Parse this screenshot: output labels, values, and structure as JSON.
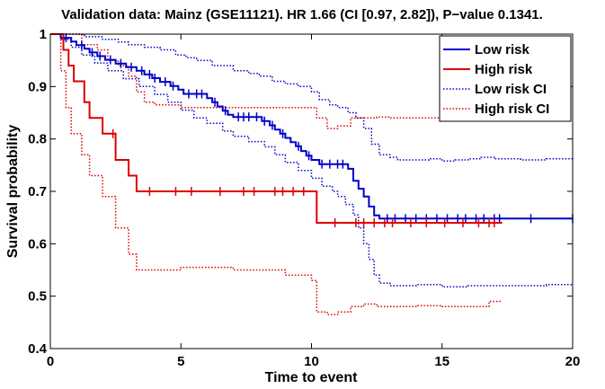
{
  "chart_data": {
    "type": "line",
    "title": "Validation data: Mainz (GSE11121). HR 1.66 (CI [0.97, 2.82]), P−value 0.1341.",
    "xlabel": "Time to event",
    "ylabel": "Survival probability",
    "xlim": [
      0,
      20
    ],
    "ylim": [
      0.4,
      1
    ],
    "xticks": [
      "0",
      "5",
      "10",
      "15",
      "20"
    ],
    "yticks": [
      "0.4",
      "0.5",
      "0.6",
      "0.7",
      "0.8",
      "0.9",
      "1"
    ],
    "grid": false,
    "legend_position": "top-right",
    "colors": {
      "blue": "#0000cc",
      "red": "#dd0000"
    },
    "series": [
      {
        "name": "Low risk",
        "style": "solid",
        "color": "#0000cc",
        "steps": [
          [
            0,
            1
          ],
          [
            0.4,
            1
          ],
          [
            0.4,
            0.993
          ],
          [
            0.8,
            0.993
          ],
          [
            0.8,
            0.986
          ],
          [
            1.0,
            0.986
          ],
          [
            1.0,
            0.979
          ],
          [
            1.3,
            0.979
          ],
          [
            1.3,
            0.972
          ],
          [
            1.5,
            0.972
          ],
          [
            1.5,
            0.965
          ],
          [
            1.8,
            0.965
          ],
          [
            1.8,
            0.958
          ],
          [
            2.1,
            0.958
          ],
          [
            2.1,
            0.951
          ],
          [
            2.5,
            0.951
          ],
          [
            2.5,
            0.944
          ],
          [
            2.9,
            0.944
          ],
          [
            2.9,
            0.937
          ],
          [
            3.3,
            0.937
          ],
          [
            3.3,
            0.93
          ],
          [
            3.6,
            0.93
          ],
          [
            3.6,
            0.923
          ],
          [
            3.9,
            0.923
          ],
          [
            3.9,
            0.916
          ],
          [
            4.2,
            0.916
          ],
          [
            4.2,
            0.909
          ],
          [
            4.6,
            0.909
          ],
          [
            4.6,
            0.901
          ],
          [
            4.9,
            0.901
          ],
          [
            4.9,
            0.894
          ],
          [
            5.1,
            0.894
          ],
          [
            5.1,
            0.886
          ],
          [
            6.0,
            0.886
          ],
          [
            6.0,
            0.878
          ],
          [
            6.2,
            0.878
          ],
          [
            6.2,
            0.87
          ],
          [
            6.4,
            0.87
          ],
          [
            6.4,
            0.862
          ],
          [
            6.6,
            0.862
          ],
          [
            6.6,
            0.854
          ],
          [
            6.8,
            0.854
          ],
          [
            6.8,
            0.846
          ],
          [
            7.0,
            0.846
          ],
          [
            7.0,
            0.842
          ],
          [
            8.1,
            0.842
          ],
          [
            8.1,
            0.834
          ],
          [
            8.4,
            0.834
          ],
          [
            8.4,
            0.826
          ],
          [
            8.6,
            0.826
          ],
          [
            8.6,
            0.818
          ],
          [
            8.8,
            0.818
          ],
          [
            8.8,
            0.81
          ],
          [
            9.0,
            0.81
          ],
          [
            9.0,
            0.802
          ],
          [
            9.2,
            0.802
          ],
          [
            9.2,
            0.794
          ],
          [
            9.4,
            0.794
          ],
          [
            9.4,
            0.786
          ],
          [
            9.6,
            0.786
          ],
          [
            9.6,
            0.777
          ],
          [
            9.8,
            0.777
          ],
          [
            9.8,
            0.768
          ],
          [
            10.0,
            0.768
          ],
          [
            10.0,
            0.76
          ],
          [
            10.3,
            0.76
          ],
          [
            10.3,
            0.752
          ],
          [
            11.4,
            0.752
          ],
          [
            11.4,
            0.743
          ],
          [
            11.6,
            0.743
          ],
          [
            11.6,
            0.72
          ],
          [
            11.8,
            0.72
          ],
          [
            11.8,
            0.705
          ],
          [
            12.0,
            0.705
          ],
          [
            12.0,
            0.69
          ],
          [
            12.2,
            0.69
          ],
          [
            12.2,
            0.671
          ],
          [
            12.4,
            0.671
          ],
          [
            12.4,
            0.654
          ],
          [
            12.6,
            0.654
          ],
          [
            12.6,
            0.648
          ],
          [
            20,
            0.648
          ]
        ],
        "censor_x": [
          0.6,
          1.2,
          1.6,
          1.9,
          2.3,
          2.7,
          3.1,
          3.5,
          3.8,
          4.0,
          4.4,
          4.7,
          5.3,
          5.6,
          5.8,
          6.3,
          6.7,
          7.2,
          7.4,
          7.6,
          7.9,
          8.2,
          8.5,
          8.9,
          9.5,
          9.9,
          10.4,
          10.7,
          11.0,
          11.2,
          12.9,
          13.2,
          13.6,
          14.0,
          14.4,
          14.8,
          15.2,
          15.6,
          15.9,
          16.3,
          16.6,
          17.0,
          17.2,
          18.4,
          20.0
        ]
      },
      {
        "name": "High risk",
        "style": "solid",
        "color": "#dd0000",
        "steps": [
          [
            0,
            1
          ],
          [
            0.5,
            1
          ],
          [
            0.5,
            0.97
          ],
          [
            0.7,
            0.97
          ],
          [
            0.7,
            0.94
          ],
          [
            0.9,
            0.94
          ],
          [
            0.9,
            0.91
          ],
          [
            1.3,
            0.91
          ],
          [
            1.3,
            0.87
          ],
          [
            1.5,
            0.87
          ],
          [
            1.5,
            0.84
          ],
          [
            2.0,
            0.84
          ],
          [
            2.0,
            0.81
          ],
          [
            2.5,
            0.81
          ],
          [
            2.5,
            0.76
          ],
          [
            3.0,
            0.76
          ],
          [
            3.0,
            0.73
          ],
          [
            3.3,
            0.73
          ],
          [
            3.3,
            0.7
          ],
          [
            10.2,
            0.7
          ],
          [
            10.2,
            0.64
          ],
          [
            17.3,
            0.64
          ]
        ],
        "censor_x": [
          2.4,
          3.8,
          4.8,
          5.4,
          6.5,
          7.4,
          7.8,
          8.6,
          8.9,
          9.3,
          9.7,
          10.9,
          11.7,
          12.0,
          12.4,
          12.8,
          13.1,
          13.8,
          14.4,
          15.1,
          15.8,
          16.4,
          16.8,
          17.0
        ]
      },
      {
        "name": "Low risk CI",
        "style": "dotted",
        "color": "#0000cc",
        "upper": [
          [
            0,
            1
          ],
          [
            1.0,
            1
          ],
          [
            1.3,
            0.995
          ],
          [
            2.0,
            0.99
          ],
          [
            2.6,
            0.985
          ],
          [
            3.0,
            0.98
          ],
          [
            3.6,
            0.975
          ],
          [
            4.2,
            0.97
          ],
          [
            4.8,
            0.96
          ],
          [
            5.2,
            0.955
          ],
          [
            5.6,
            0.95
          ],
          [
            6.2,
            0.94
          ],
          [
            7.0,
            0.93
          ],
          [
            7.6,
            0.925
          ],
          [
            8.0,
            0.92
          ],
          [
            8.5,
            0.91
          ],
          [
            9.0,
            0.905
          ],
          [
            9.5,
            0.9
          ],
          [
            10.0,
            0.89
          ],
          [
            10.3,
            0.875
          ],
          [
            10.7,
            0.865
          ],
          [
            11.0,
            0.86
          ],
          [
            11.4,
            0.85
          ],
          [
            11.7,
            0.84
          ],
          [
            12.0,
            0.82
          ],
          [
            12.3,
            0.79
          ],
          [
            12.6,
            0.77
          ],
          [
            13.0,
            0.765
          ],
          [
            13.3,
            0.76
          ],
          [
            14.0,
            0.76
          ],
          [
            14.5,
            0.762
          ],
          [
            15.0,
            0.758
          ],
          [
            15.5,
            0.76
          ],
          [
            16.0,
            0.762
          ],
          [
            16.5,
            0.765
          ],
          [
            17.0,
            0.762
          ],
          [
            18.0,
            0.76
          ],
          [
            19.0,
            0.762
          ],
          [
            20,
            0.76
          ]
        ],
        "lower": [
          [
            0,
            1
          ],
          [
            0.4,
            0.99
          ],
          [
            0.8,
            0.975
          ],
          [
            1.2,
            0.96
          ],
          [
            1.7,
            0.945
          ],
          [
            2.2,
            0.93
          ],
          [
            2.8,
            0.915
          ],
          [
            3.4,
            0.9
          ],
          [
            4.0,
            0.885
          ],
          [
            4.5,
            0.87
          ],
          [
            5.0,
            0.855
          ],
          [
            5.5,
            0.84
          ],
          [
            6.0,
            0.83
          ],
          [
            6.6,
            0.815
          ],
          [
            7.0,
            0.805
          ],
          [
            7.6,
            0.795
          ],
          [
            8.2,
            0.785
          ],
          [
            8.6,
            0.77
          ],
          [
            9.0,
            0.755
          ],
          [
            9.5,
            0.74
          ],
          [
            10.0,
            0.725
          ],
          [
            10.4,
            0.71
          ],
          [
            10.8,
            0.7
          ],
          [
            11.0,
            0.69
          ],
          [
            11.3,
            0.675
          ],
          [
            11.6,
            0.655
          ],
          [
            11.8,
            0.63
          ],
          [
            12.0,
            0.6
          ],
          [
            12.2,
            0.57
          ],
          [
            12.4,
            0.54
          ],
          [
            12.6,
            0.525
          ],
          [
            13.0,
            0.52
          ],
          [
            14.0,
            0.522
          ],
          [
            15.0,
            0.518
          ],
          [
            16.0,
            0.52
          ],
          [
            17.0,
            0.52
          ],
          [
            18.0,
            0.52
          ],
          [
            19.0,
            0.522
          ],
          [
            20,
            0.52
          ]
        ]
      },
      {
        "name": "High risk CI",
        "style": "dotted",
        "color": "#dd0000",
        "upper": [
          [
            0,
            1
          ],
          [
            1.0,
            1
          ],
          [
            1.2,
            0.98
          ],
          [
            1.8,
            0.97
          ],
          [
            2.2,
            0.95
          ],
          [
            2.6,
            0.94
          ],
          [
            3.0,
            0.92
          ],
          [
            3.3,
            0.89
          ],
          [
            3.6,
            0.87
          ],
          [
            4.0,
            0.865
          ],
          [
            4.5,
            0.865
          ],
          [
            5.0,
            0.86
          ],
          [
            6.0,
            0.86
          ],
          [
            7.0,
            0.86
          ],
          [
            8.0,
            0.86
          ],
          [
            9.0,
            0.86
          ],
          [
            10.0,
            0.86
          ],
          [
            10.2,
            0.84
          ],
          [
            10.6,
            0.82
          ],
          [
            11.0,
            0.825
          ],
          [
            11.5,
            0.84
          ],
          [
            12.0,
            0.84
          ],
          [
            12.5,
            0.842
          ],
          [
            13.0,
            0.84
          ],
          [
            14.0,
            0.84
          ],
          [
            15.0,
            0.842
          ],
          [
            16.0,
            0.84
          ],
          [
            17.0,
            0.84
          ],
          [
            17.3,
            0.84
          ]
        ],
        "lower": [
          [
            0,
            1
          ],
          [
            0.4,
            0.93
          ],
          [
            0.6,
            0.86
          ],
          [
            0.8,
            0.81
          ],
          [
            1.2,
            0.77
          ],
          [
            1.5,
            0.73
          ],
          [
            2.0,
            0.69
          ],
          [
            2.5,
            0.63
          ],
          [
            3.0,
            0.58
          ],
          [
            3.3,
            0.55
          ],
          [
            4.0,
            0.55
          ],
          [
            5.0,
            0.555
          ],
          [
            6.0,
            0.555
          ],
          [
            7.0,
            0.55
          ],
          [
            8.0,
            0.55
          ],
          [
            9.0,
            0.54
          ],
          [
            10.0,
            0.53
          ],
          [
            10.2,
            0.47
          ],
          [
            10.6,
            0.465
          ],
          [
            11.0,
            0.47
          ],
          [
            11.5,
            0.48
          ],
          [
            12.0,
            0.485
          ],
          [
            12.5,
            0.48
          ],
          [
            13.0,
            0.48
          ],
          [
            14.0,
            0.482
          ],
          [
            15.0,
            0.48
          ],
          [
            16.0,
            0.48
          ],
          [
            16.8,
            0.49
          ],
          [
            17.3,
            0.49
          ]
        ]
      }
    ]
  }
}
